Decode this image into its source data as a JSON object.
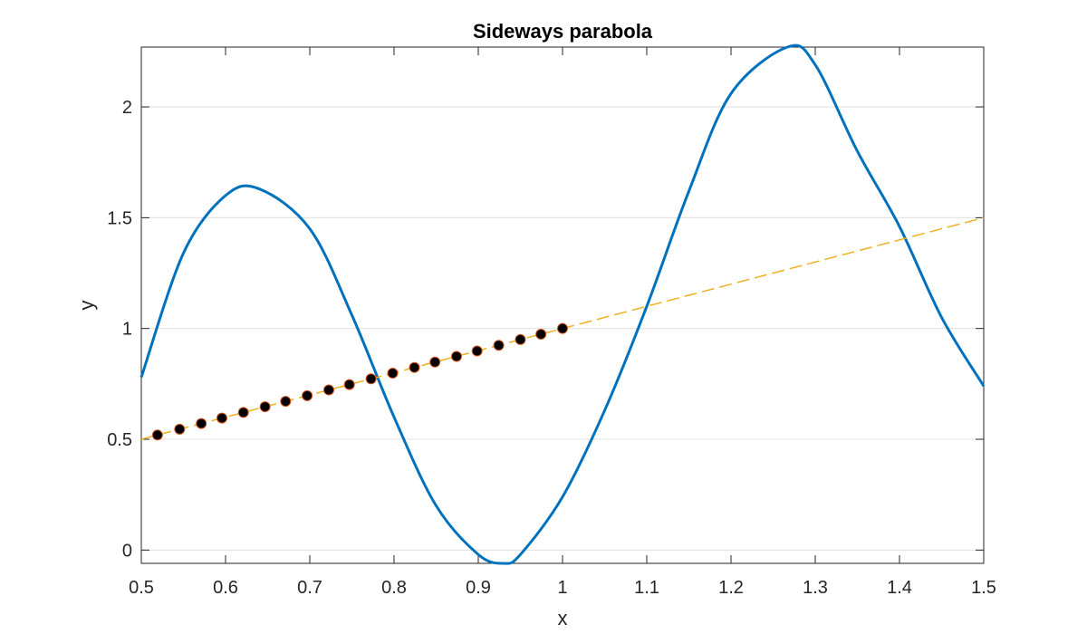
{
  "chart_data": {
    "type": "line",
    "title": "Sideways parabola",
    "xlabel": "x",
    "ylabel": "y",
    "xlim": [
      0.5,
      1.5
    ],
    "ylim": [
      -0.06,
      2.27
    ],
    "xticks": [
      "0.5",
      "0.6",
      "0.7",
      "0.8",
      "0.9",
      "1",
      "1.1",
      "1.2",
      "1.3",
      "1.4",
      "1.5"
    ],
    "yticks": [
      "0",
      "0.5",
      "1",
      "1.5",
      "2"
    ],
    "grid": "y-major",
    "series": [
      {
        "style": "solid",
        "color": "#0072BD",
        "x": [
          0.5,
          0.55,
          0.6,
          0.64,
          0.7,
          0.75,
          0.8,
          0.85,
          0.9,
          0.93,
          0.95,
          1.0,
          1.05,
          1.1,
          1.15,
          1.2,
          1.267,
          1.3,
          1.35,
          1.4,
          1.45,
          1.5
        ],
        "y": [
          0.78,
          1.34,
          1.6,
          1.63,
          1.45,
          1.06,
          0.6,
          0.2,
          -0.02,
          -0.06,
          -0.02,
          0.24,
          0.63,
          1.1,
          1.62,
          2.06,
          2.27,
          2.19,
          1.8,
          1.46,
          1.05,
          0.74
        ]
      },
      {
        "style": "dashed",
        "color": "#EDB120",
        "x": [
          0.5,
          1.5
        ],
        "y": [
          0.5,
          1.5
        ]
      },
      {
        "style": "markers",
        "color": "#000000",
        "x": [
          0.5192,
          0.5455,
          0.5712,
          0.5957,
          0.6212,
          0.6469,
          0.6713,
          0.6969,
          0.7226,
          0.747,
          0.7727,
          0.7984,
          0.8242,
          0.8486,
          0.8742,
          0.8986,
          0.9243,
          0.95,
          0.9744,
          1.0
        ],
        "y": [
          0.5192,
          0.5455,
          0.5712,
          0.5957,
          0.6212,
          0.6469,
          0.6713,
          0.6969,
          0.7226,
          0.747,
          0.7727,
          0.7984,
          0.8242,
          0.8486,
          0.8742,
          0.8986,
          0.9243,
          0.95,
          0.9744,
          1.0
        ]
      }
    ]
  }
}
